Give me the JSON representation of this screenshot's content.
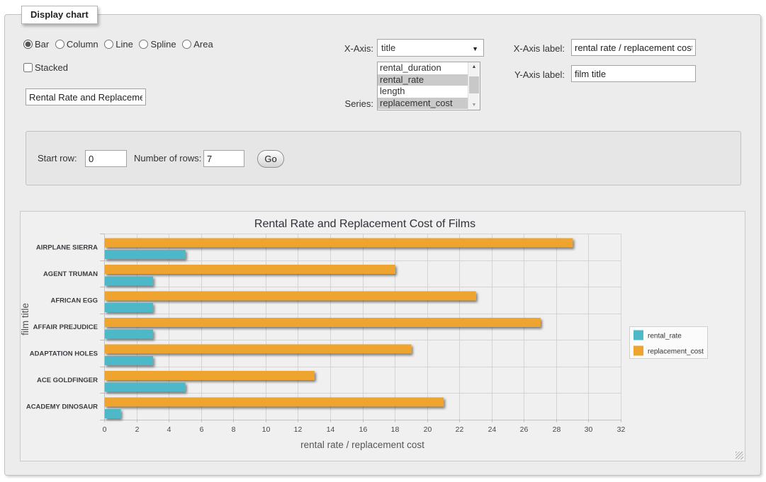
{
  "panel": {
    "legend": "Display chart"
  },
  "chart_types": [
    {
      "label": "Bar",
      "selected": true
    },
    {
      "label": "Column",
      "selected": false
    },
    {
      "label": "Line",
      "selected": false
    },
    {
      "label": "Spline",
      "selected": false
    },
    {
      "label": "Area",
      "selected": false
    }
  ],
  "stacked": {
    "label": "Stacked",
    "checked": false
  },
  "title_input": {
    "value": "Rental Rate and Replacement Cost of Films"
  },
  "x_axis": {
    "label": "X-Axis:",
    "value": "title"
  },
  "series_select": {
    "label": "Series:",
    "options": [
      {
        "label": "rental_duration",
        "selected": false
      },
      {
        "label": "rental_rate",
        "selected": true
      },
      {
        "label": "length",
        "selected": false
      },
      {
        "label": "replacement_cost",
        "selected": true
      }
    ]
  },
  "x_axis_label": {
    "label": "X-Axis label:",
    "value": "rental rate / replacement cost"
  },
  "y_axis_label": {
    "label": "Y-Axis label:",
    "value": "film title"
  },
  "row_controls": {
    "start_row_label": "Start row:",
    "start_row_value": "0",
    "num_rows_label": "Number of rows:",
    "num_rows_value": "7",
    "go_label": "Go"
  },
  "chart_data": {
    "type": "bar",
    "title": "Rental Rate and Replacement Cost of Films",
    "categories": [
      "AIRPLANE SIERRA",
      "AGENT TRUMAN",
      "AFRICAN EGG",
      "AFFAIR PREJUDICE",
      "ADAPTATION HOLES",
      "ACE GOLDFINGER",
      "ACADEMY DINOSAUR"
    ],
    "series": [
      {
        "name": "rental_rate",
        "color": "#4db8c8",
        "values": [
          4.99,
          2.99,
          2.99,
          2.99,
          2.99,
          4.99,
          0.99
        ]
      },
      {
        "name": "replacement_cost",
        "color": "#eea42f",
        "values": [
          28.99,
          17.99,
          22.99,
          26.99,
          18.99,
          12.99,
          20.99
        ]
      }
    ],
    "xlabel": "rental rate / replacement cost",
    "ylabel": "film title",
    "xlim": [
      0,
      32
    ],
    "x_tick_step": 2,
    "grid": true,
    "legend_position": "right"
  }
}
